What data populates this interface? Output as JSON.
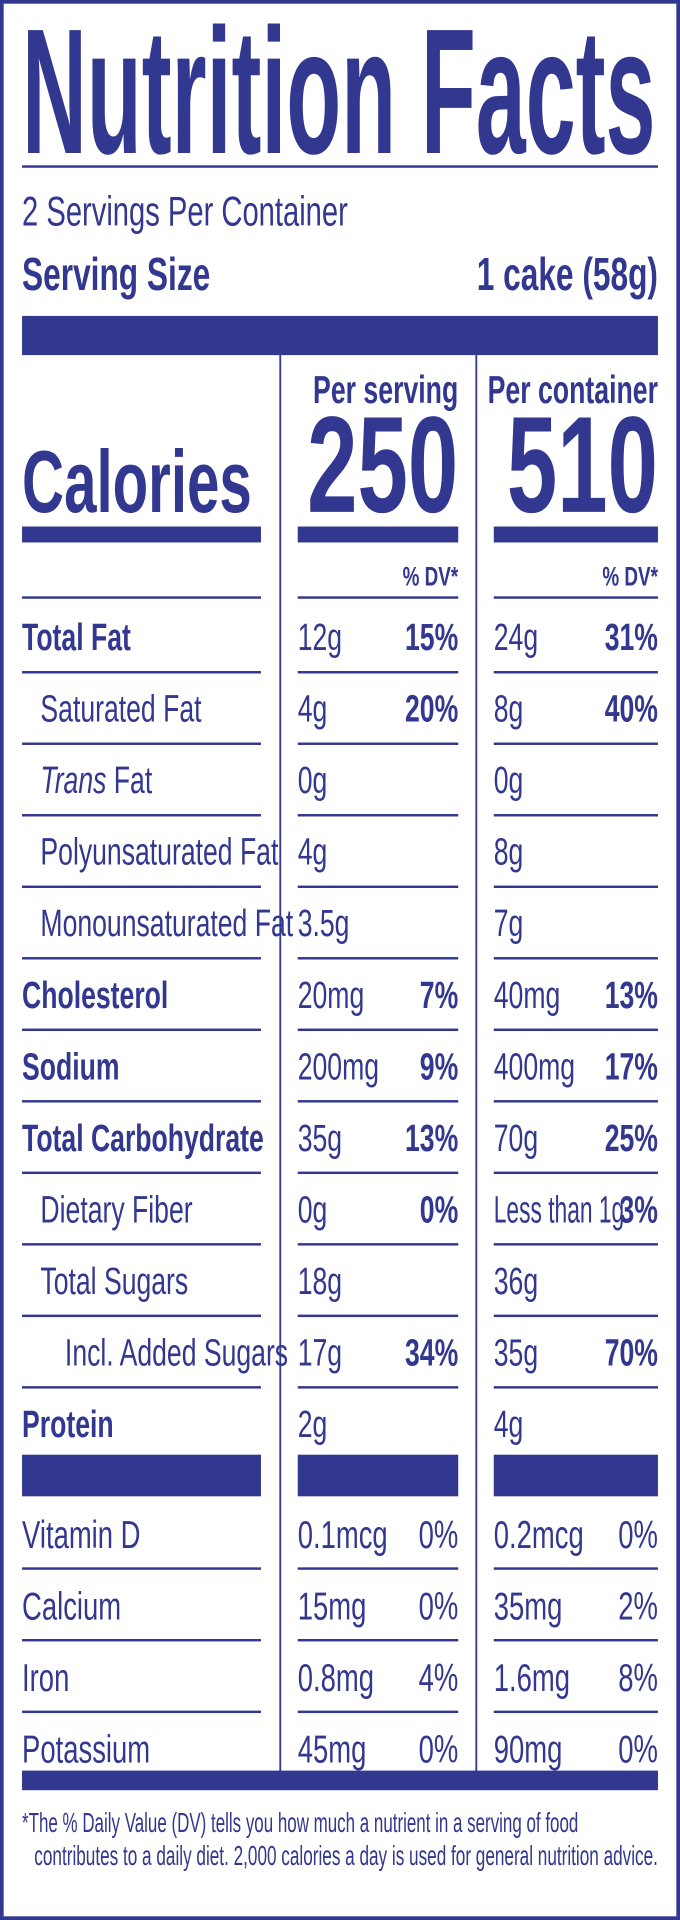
{
  "colors": {
    "ink": "#32378f",
    "background": "#ffffff"
  },
  "title": "Nutrition Facts",
  "servings_per_container": "2 Servings Per Container",
  "serving_size": {
    "label": "Serving Size",
    "value": "1 cake (58g)"
  },
  "columns": [
    {
      "header": "Per serving",
      "calories": "250",
      "dv_header": "% DV*"
    },
    {
      "header": "Per container",
      "calories": "510",
      "dv_header": "% DV*"
    }
  ],
  "calories_label": "Calories",
  "nutrients": [
    {
      "name": "Total Fat",
      "bold": true,
      "indent": 0,
      "serving": {
        "amount": "12g",
        "dv": "15%"
      },
      "container": {
        "amount": "24g",
        "dv": "31%"
      }
    },
    {
      "name": "Saturated Fat",
      "bold": false,
      "indent": 1,
      "serving": {
        "amount": "4g",
        "dv": "20%"
      },
      "container": {
        "amount": "8g",
        "dv": "40%"
      }
    },
    {
      "name_italic": "Trans",
      "name": " Fat",
      "bold": false,
      "indent": 1,
      "serving": {
        "amount": "0g",
        "dv": ""
      },
      "container": {
        "amount": "0g",
        "dv": ""
      }
    },
    {
      "name": "Polyunsaturated Fat",
      "bold": false,
      "indent": 1,
      "serving": {
        "amount": "4g",
        "dv": ""
      },
      "container": {
        "amount": "8g",
        "dv": ""
      }
    },
    {
      "name": "Monounsaturated Fat",
      "bold": false,
      "indent": 1,
      "serving": {
        "amount": "3.5g",
        "dv": ""
      },
      "container": {
        "amount": "7g",
        "dv": ""
      }
    },
    {
      "name": "Cholesterol",
      "bold": true,
      "indent": 0,
      "serving": {
        "amount": "20mg",
        "dv": "7%"
      },
      "container": {
        "amount": "40mg",
        "dv": "13%"
      }
    },
    {
      "name": "Sodium",
      "bold": true,
      "indent": 0,
      "serving": {
        "amount": "200mg",
        "dv": "9%"
      },
      "container": {
        "amount": "400mg",
        "dv": "17%"
      }
    },
    {
      "name": "Total Carbohydrate",
      "bold": true,
      "indent": 0,
      "serving": {
        "amount": "35g",
        "dv": "13%"
      },
      "container": {
        "amount": "70g",
        "dv": "25%"
      }
    },
    {
      "name": "Dietary Fiber",
      "bold": false,
      "indent": 1,
      "serving": {
        "amount": "0g",
        "dv": "0%"
      },
      "container": {
        "amount": "Less than 1g",
        "dv": "3%"
      }
    },
    {
      "name": "Total Sugars",
      "bold": false,
      "indent": 1,
      "serving": {
        "amount": "18g",
        "dv": ""
      },
      "container": {
        "amount": "36g",
        "dv": ""
      }
    },
    {
      "name": "Incl. Added Sugars",
      "bold": false,
      "indent": 2,
      "serving": {
        "amount": "17g",
        "dv": "34%"
      },
      "container": {
        "amount": "35g",
        "dv": "70%"
      }
    },
    {
      "name": "Protein",
      "bold": true,
      "indent": 0,
      "serving": {
        "amount": "2g",
        "dv": ""
      },
      "container": {
        "amount": "4g",
        "dv": ""
      }
    }
  ],
  "vitamins": [
    {
      "name": "Vitamin D",
      "serving": {
        "amount": "0.1mcg",
        "dv": "0%"
      },
      "container": {
        "amount": "0.2mcg",
        "dv": "0%"
      }
    },
    {
      "name": "Calcium",
      "serving": {
        "amount": "15mg",
        "dv": "0%"
      },
      "container": {
        "amount": "35mg",
        "dv": "2%"
      }
    },
    {
      "name": "Iron",
      "serving": {
        "amount": "0.8mg",
        "dv": "4%"
      },
      "container": {
        "amount": "1.6mg",
        "dv": "8%"
      }
    },
    {
      "name": "Potassium",
      "serving": {
        "amount": "45mg",
        "dv": "0%"
      },
      "container": {
        "amount": "90mg",
        "dv": "0%"
      }
    }
  ],
  "footnote": [
    "*The % Daily Value (DV) tells you how much a nutrient in a serving of food",
    "contributes to a daily diet. 2,000 calories a day is used for general nutrition advice."
  ]
}
